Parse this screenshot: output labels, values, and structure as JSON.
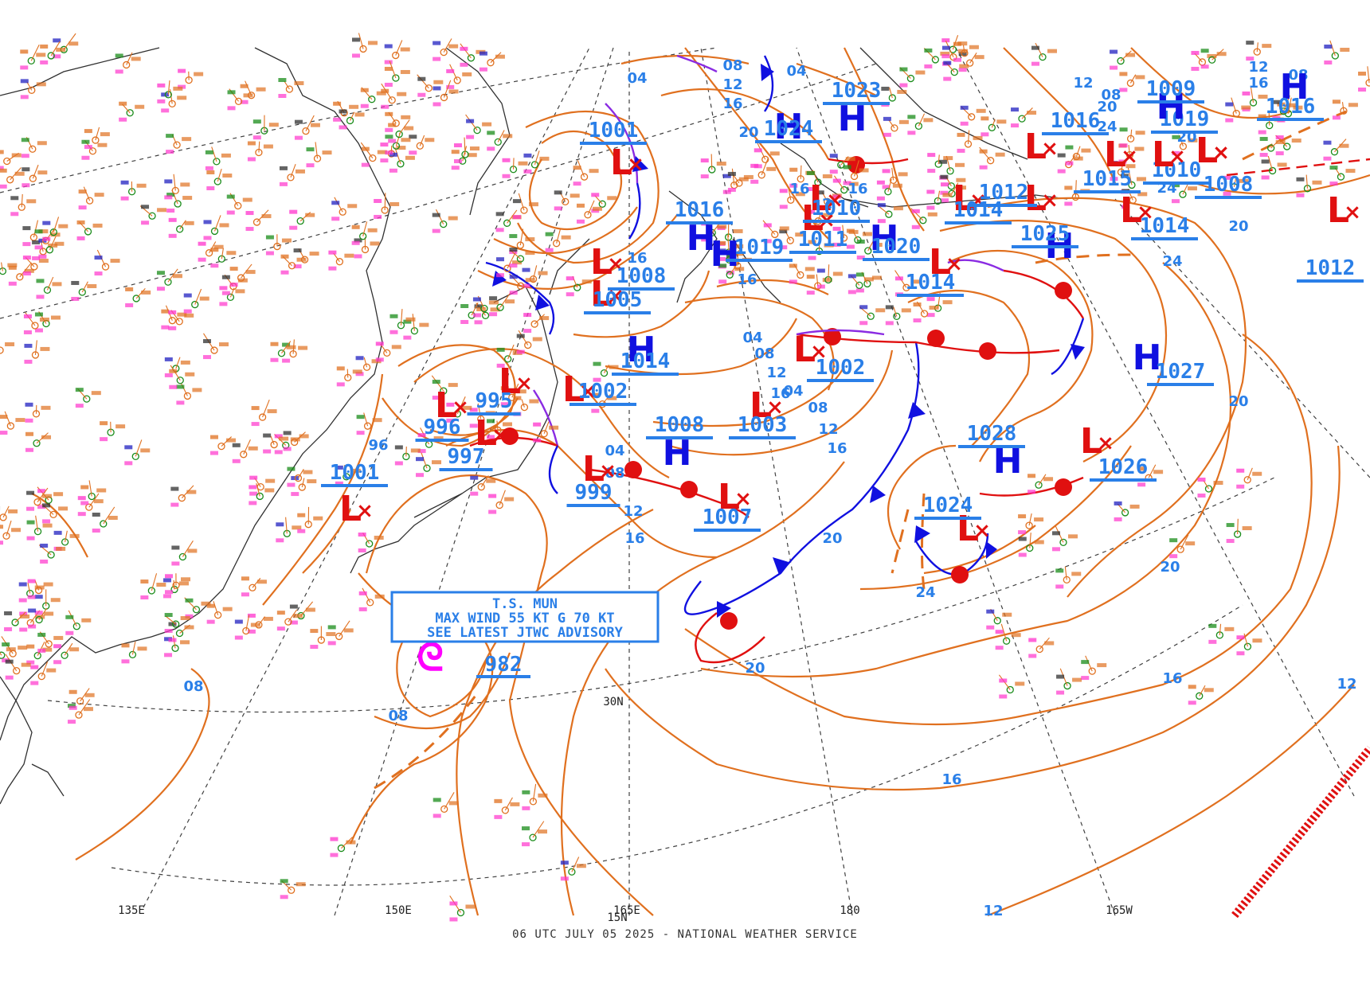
{
  "footer": "06 UTC JULY 05 2025 - NATIONAL WEATHER SERVICE",
  "colors": {
    "isobar": "#e0701f",
    "label": "#2a7fe8",
    "high": "#1010e0",
    "low": "#e01010",
    "cold_front": "#1010e0",
    "warm_front": "#e01010",
    "occluded_front": "#8a2be2",
    "tropical_symbol": "#ff00ff"
  },
  "symbols": {
    "high": "H",
    "low": "L",
    "low_center": "×",
    "tropical": "ᘓ"
  },
  "advisory": {
    "line1": "T.S. MUN",
    "line2": "MAX WIND 55 KT G 70 KT",
    "line3": "SEE LATEST JTWC ADVISORY",
    "pressure": "982"
  },
  "geo_labels": [
    "135E",
    "150E",
    "165E",
    "180",
    "165W",
    "30N",
    "15N"
  ],
  "pressure_systems": [
    {
      "type": "L",
      "value": "1001"
    },
    {
      "type": "L",
      "value": "1008"
    },
    {
      "type": "L",
      "value": "1005"
    },
    {
      "type": "H",
      "value": "1016"
    },
    {
      "type": "H",
      "value": "1024"
    },
    {
      "type": "H",
      "value": "1023"
    },
    {
      "type": "H",
      "value": "1014"
    },
    {
      "type": "L",
      "value": "1002"
    },
    {
      "type": "L",
      "value": "995"
    },
    {
      "type": "L",
      "value": "996"
    },
    {
      "type": "L",
      "value": "997"
    },
    {
      "type": "L",
      "value": "1001"
    },
    {
      "type": "L",
      "value": "999"
    },
    {
      "type": "L",
      "value": "1007"
    },
    {
      "type": "H",
      "value": "1008"
    },
    {
      "type": "L",
      "value": "1003"
    },
    {
      "type": "L",
      "value": "1002"
    },
    {
      "type": "H",
      "value": "1019"
    },
    {
      "type": "L",
      "value": "1011"
    },
    {
      "type": "L",
      "value": "1010"
    },
    {
      "type": "H",
      "value": "1020"
    },
    {
      "type": "L",
      "value": "1014"
    },
    {
      "type": "H",
      "value": "1025"
    },
    {
      "type": "L",
      "value": "1014"
    },
    {
      "type": "H",
      "value": "1028"
    },
    {
      "type": "L",
      "value": "1024"
    },
    {
      "type": "L",
      "value": "1026"
    },
    {
      "type": "H",
      "value": "1027"
    },
    {
      "type": "L",
      "value": "1012"
    },
    {
      "type": "L",
      "value": "1016"
    },
    {
      "type": "L",
      "value": "1015"
    },
    {
      "type": "L",
      "value": "1010"
    },
    {
      "type": "L",
      "value": "1019"
    },
    {
      "type": "H",
      "value": "1016"
    },
    {
      "type": "H",
      "value": "1009"
    },
    {
      "type": "L",
      "value": "1008"
    },
    {
      "type": "L",
      "value": "1014"
    },
    {
      "type": "L",
      "value": "1012"
    }
  ],
  "isobar_labels": [
    "04",
    "08",
    "12",
    "16",
    "04",
    "08",
    "12",
    "16",
    "20",
    "24",
    "20",
    "24",
    "20",
    "16",
    "12",
    "12",
    "08",
    "08",
    "96",
    "08",
    "04",
    "08",
    "12",
    "16",
    "20",
    "24",
    "16",
    "20",
    "12",
    "08",
    "04",
    "04",
    "08",
    "12",
    "16",
    "20",
    "16",
    "12",
    "16",
    "20",
    "16",
    "16",
    "12",
    "24",
    "20",
    "16"
  ]
}
